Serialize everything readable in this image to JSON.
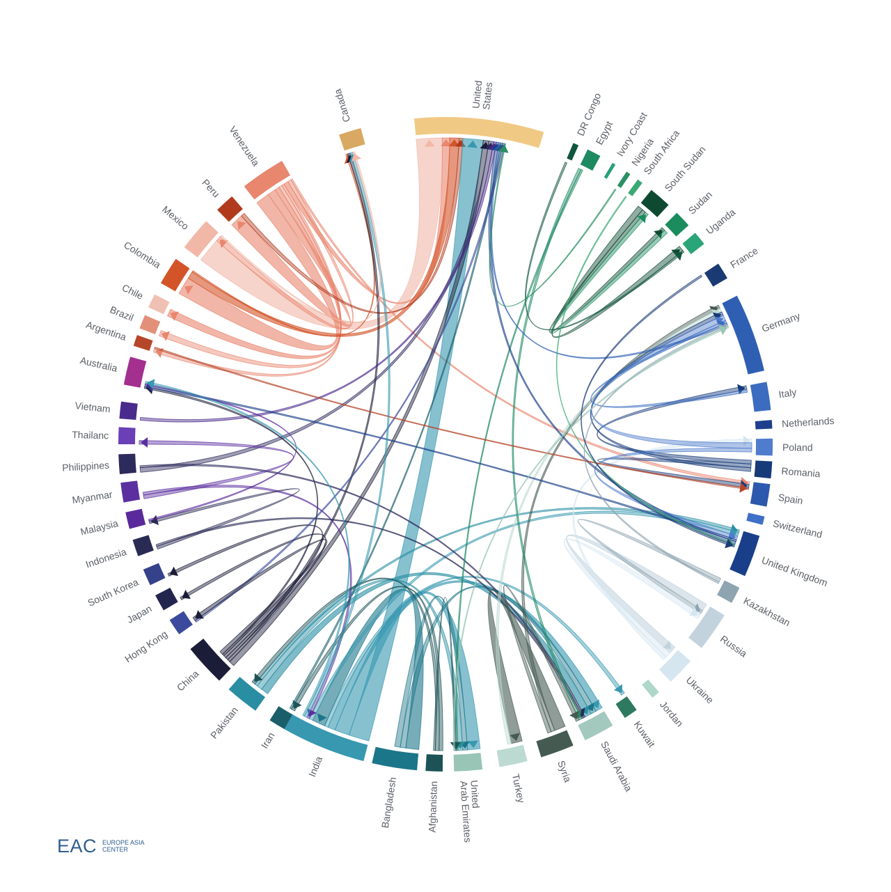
{
  "logo": {
    "mark": "EAC",
    "line1": "EUROPE ASIA",
    "line2": "CENTER"
  },
  "nodes": [
    {
      "id": "canada",
      "label": [
        "Canada"
      ],
      "angle": -17,
      "span": 4,
      "color": "#d9a862"
    },
    {
      "id": "usa",
      "label": [
        "United",
        "States"
      ],
      "angle": 6,
      "span": 23,
      "color": "#f0c985"
    },
    {
      "id": "drcongo",
      "label": [
        "DR Congo"
      ],
      "angle": 23.5,
      "span": 1,
      "color": "#11563f"
    },
    {
      "id": "egypt",
      "label": [
        "Egypt"
      ],
      "angle": 27,
      "span": 2.5,
      "color": "#1e8a62"
    },
    {
      "id": "ivorycoast",
      "label": [
        "Ivory Coast"
      ],
      "angle": 31,
      "span": 0.6,
      "color": "#27a078"
    },
    {
      "id": "nigeria",
      "label": [
        "Nigeria"
      ],
      "angle": 34,
      "span": 0.8,
      "color": "#2a8f63"
    },
    {
      "id": "southafrica",
      "label": [
        "South Africa"
      ],
      "angle": 36.5,
      "span": 1,
      "color": "#3aaa74"
    },
    {
      "id": "southsudan",
      "label": [
        "South Sudan"
      ],
      "angle": 41,
      "span": 4,
      "color": "#0e4a32"
    },
    {
      "id": "sudan",
      "label": [
        "Sudan"
      ],
      "angle": 46.5,
      "span": 3,
      "color": "#1a8c5e"
    },
    {
      "id": "uganda",
      "label": [
        "Uganda"
      ],
      "angle": 51,
      "span": 2.5,
      "color": "#2aa578"
    },
    {
      "id": "france",
      "label": [
        "France"
      ],
      "angle": 58,
      "span": 3,
      "color": "#1b3a74"
    },
    {
      "id": "germany",
      "label": [
        "Germany"
      ],
      "angle": 70,
      "span": 14,
      "color": "#2f5fb3"
    },
    {
      "id": "italy",
      "label": [
        "Italy"
      ],
      "angle": 81.5,
      "span": 5,
      "color": "#3b6cbf"
    },
    {
      "id": "netherlands",
      "label": [
        "Netherlands"
      ],
      "angle": 86.5,
      "span": 1.5,
      "color": "#1d3f8c"
    },
    {
      "id": "poland",
      "label": [
        "Poland"
      ],
      "angle": 90.5,
      "span": 3,
      "color": "#4f7ccc"
    },
    {
      "id": "romania",
      "label": [
        "Romania"
      ],
      "angle": 94.5,
      "span": 3,
      "color": "#173a78"
    },
    {
      "id": "spain",
      "label": [
        "Spain"
      ],
      "angle": 99,
      "span": 4,
      "color": "#2c59ad"
    },
    {
      "id": "switzerland",
      "label": [
        "Switzerland"
      ],
      "angle": 103.5,
      "span": 1.5,
      "color": "#3f6fc7"
    },
    {
      "id": "uk",
      "label": [
        "United Kingdom"
      ],
      "angle": 110,
      "span": 7.5,
      "color": "#1a3f8a"
    },
    {
      "id": "kazakhstan",
      "label": [
        "Kazakhstan"
      ],
      "angle": 117.5,
      "span": 3,
      "color": "#8ea4b0"
    },
    {
      "id": "russia",
      "label": [
        "Russia"
      ],
      "angle": 125,
      "span": 7,
      "color": "#c3d3de"
    },
    {
      "id": "ukraine",
      "label": [
        "Ukraine"
      ],
      "angle": 134,
      "span": 5,
      "color": "#d5e6f1"
    },
    {
      "id": "jordan",
      "label": [
        "Jordan"
      ],
      "angle": 140,
      "span": 1.5,
      "color": "#aed6c9"
    },
    {
      "id": "kuwait",
      "label": [
        "Kuwait"
      ],
      "angle": 145.5,
      "span": 2.5,
      "color": "#2e7a60"
    },
    {
      "id": "saudiarabia",
      "label": [
        "Saudi Arabia"
      ],
      "angle": 152,
      "span": 5.5,
      "color": "#a3c9bf"
    },
    {
      "id": "syria",
      "label": [
        "Syria"
      ],
      "angle": 160,
      "span": 6,
      "color": "#455a51"
    },
    {
      "id": "turkey",
      "label": [
        "Turkey"
      ],
      "angle": 168,
      "span": 5,
      "color": "#bcdad2"
    },
    {
      "id": "uae",
      "label": [
        "United",
        "Arab Emirates"
      ],
      "angle": 176,
      "span": 5,
      "color": "#98c5b6"
    },
    {
      "id": "afghanistan",
      "label": [
        "Afghanistan"
      ],
      "angle": 182,
      "span": 3,
      "color": "#1d5357"
    },
    {
      "id": "bangladesh",
      "label": [
        "Bangladesh"
      ],
      "angle": 189,
      "span": 8,
      "color": "#1c768a"
    },
    {
      "id": "india",
      "label": [
        "India"
      ],
      "angle": 202,
      "span": 15,
      "color": "#3798b0"
    },
    {
      "id": "iran",
      "label": [
        "Iran"
      ],
      "angle": 211,
      "span": 3,
      "color": "#1a5e6a"
    },
    {
      "id": "pakistan",
      "label": [
        "Pakistan"
      ],
      "angle": 218.5,
      "span": 6,
      "color": "#2a8ea3"
    },
    {
      "id": "china",
      "label": [
        "China"
      ],
      "angle": 227.5,
      "span": 7.5,
      "color": "#1b1d38"
    },
    {
      "id": "hongkong",
      "label": [
        "Hong Kong"
      ],
      "angle": 236,
      "span": 3,
      "color": "#3b4a9c"
    },
    {
      "id": "japan",
      "label": [
        "Japan"
      ],
      "angle": 241,
      "span": 3,
      "color": "#22264f"
    },
    {
      "id": "southkorea",
      "label": [
        "South Korea"
      ],
      "angle": 246,
      "span": 3,
      "color": "#35418a"
    },
    {
      "id": "indonesia",
      "label": [
        "Indonesia"
      ],
      "angle": 251.5,
      "span": 3,
      "color": "#2a2b55"
    },
    {
      "id": "malaysia",
      "label": [
        "Malaysia"
      ],
      "angle": 256.5,
      "span": 3,
      "color": "#5a2a9c"
    },
    {
      "id": "myanmar",
      "label": [
        "Myanmar"
      ],
      "angle": 261.5,
      "span": 3.5,
      "color": "#5b2fa0"
    },
    {
      "id": "philippines",
      "label": [
        "Philippines"
      ],
      "angle": 266.5,
      "span": 3.5,
      "color": "#2d2a5c"
    },
    {
      "id": "thailand",
      "label": [
        "Thailanc"
      ],
      "angle": 271.5,
      "span": 3,
      "color": "#6b3fb5"
    },
    {
      "id": "vietnam",
      "label": [
        "Vietnam"
      ],
      "angle": 276,
      "span": 3,
      "color": "#4a2a8c"
    },
    {
      "id": "australia",
      "label": [
        "Australia"
      ],
      "angle": 283,
      "span": 5,
      "color": "#a32f8e"
    },
    {
      "id": "argentina",
      "label": [
        "Argentina"
      ],
      "angle": 288.5,
      "span": 2,
      "color": "#b5462a"
    },
    {
      "id": "brazil",
      "label": [
        "Brazil"
      ],
      "angle": 292,
      "span": 2.5,
      "color": "#e3907a"
    },
    {
      "id": "chile",
      "label": [
        "Chile"
      ],
      "angle": 296,
      "span": 2.5,
      "color": "#f0c0b2"
    },
    {
      "id": "colombia",
      "label": [
        "Colombia"
      ],
      "angle": 302,
      "span": 5,
      "color": "#d35428"
    },
    {
      "id": "mexico",
      "label": [
        "Mexico"
      ],
      "angle": 310,
      "span": 6,
      "color": "#f1b8a8"
    },
    {
      "id": "peru",
      "label": [
        "Peru"
      ],
      "angle": 317.5,
      "span": 3.5,
      "color": "#b13a1d"
    },
    {
      "id": "venezuela",
      "label": [
        "Venezuela"
      ],
      "angle": 326,
      "span": 8,
      "color": "#e8866e"
    }
  ],
  "flows": [
    [
      "mexico",
      "usa",
      14
    ],
    [
      "venezuela",
      "colombia",
      12
    ],
    [
      "venezuela",
      "peru",
      7
    ],
    [
      "venezuela",
      "chile",
      4
    ],
    [
      "venezuela",
      "brazil",
      3
    ],
    [
      "venezuela",
      "argentina",
      2
    ],
    [
      "venezuela",
      "usa",
      4
    ],
    [
      "venezuela",
      "mexico",
      3
    ],
    [
      "colombia",
      "usa",
      5
    ],
    [
      "peru",
      "usa",
      2
    ],
    [
      "colombia",
      "canada",
      1
    ],
    [
      "venezuela",
      "spain",
      1.5
    ],
    [
      "india",
      "usa",
      11
    ],
    [
      "india",
      "uae",
      8
    ],
    [
      "india",
      "saudiarabia",
      4
    ],
    [
      "india",
      "kuwait",
      2
    ],
    [
      "bangladesh",
      "india",
      7
    ],
    [
      "bangladesh",
      "saudiarabia",
      3
    ],
    [
      "bangladesh",
      "uae",
      3
    ],
    [
      "pakistan",
      "saudiarabia",
      4
    ],
    [
      "pakistan",
      "uae",
      3
    ],
    [
      "pakistan",
      "uk",
      1.5
    ],
    [
      "india",
      "uk",
      2
    ],
    [
      "china",
      "usa",
      3
    ],
    [
      "china",
      "canada",
      1.5
    ],
    [
      "china",
      "japan",
      1.5
    ],
    [
      "china",
      "southkorea",
      1.5
    ],
    [
      "china",
      "australia",
      1
    ],
    [
      "philippines",
      "usa",
      2.5
    ],
    [
      "philippines",
      "saudiarabia",
      1
    ],
    [
      "myanmar",
      "thailand",
      2
    ],
    [
      "myanmar",
      "india",
      1.5
    ],
    [
      "vietnam",
      "usa",
      1.5
    ],
    [
      "indonesia",
      "malaysia",
      1.5
    ],
    [
      "indonesia",
      "saudiarabia",
      1
    ],
    [
      "syria",
      "turkey",
      6
    ],
    [
      "syria",
      "germany",
      2
    ],
    [
      "afghanistan",
      "iran",
      2
    ],
    [
      "afghanistan",
      "pakistan",
      2
    ],
    [
      "turkey",
      "germany",
      2
    ],
    [
      "russia",
      "ukraine",
      4
    ],
    [
      "kazakhstan",
      "russia",
      2
    ],
    [
      "ukraine",
      "russia",
      3
    ],
    [
      "ukraine",
      "poland",
      2
    ],
    [
      "romania",
      "italy",
      2
    ],
    [
      "romania",
      "spain",
      2
    ],
    [
      "romania",
      "germany",
      2
    ],
    [
      "poland",
      "germany",
      3
    ],
    [
      "poland",
      "uk",
      2
    ],
    [
      "italy",
      "germany",
      1.5
    ],
    [
      "southsudan",
      "uganda",
      3
    ],
    [
      "southsudan",
      "sudan",
      2
    ],
    [
      "sudan",
      "southsudan",
      2
    ],
    [
      "egypt",
      "saudiarabia",
      1.5
    ],
    [
      "drcongo",
      "uganda",
      1
    ],
    [
      "egypt",
      "uae",
      1
    ],
    [
      "uk",
      "australia",
      1
    ],
    [
      "uk",
      "usa",
      1.5
    ],
    [
      "germany",
      "usa",
      1
    ],
    [
      "iran",
      "usa",
      1
    ],
    [
      "hongkong",
      "usa",
      1
    ],
    [
      "malaysia",
      "australia",
      0.8
    ],
    [
      "argentina",
      "spain",
      0.8
    ],
    [
      "india",
      "canada",
      1.5
    ],
    [
      "china",
      "hongkong",
      2
    ],
    [
      "southafrica",
      "uk",
      0.6
    ],
    [
      "nigeria",
      "usa",
      0.6
    ],
    [
      "kazakhstan",
      "germany",
      1
    ],
    [
      "india",
      "australia",
      1
    ],
    [
      "mexico",
      "canada",
      1
    ],
    [
      "syria",
      "saudiarabia",
      2
    ],
    [
      "afghanistan",
      "uae",
      1
    ],
    [
      "uae",
      "germany",
      0.8
    ],
    [
      "france",
      "uk",
      1
    ]
  ]
}
